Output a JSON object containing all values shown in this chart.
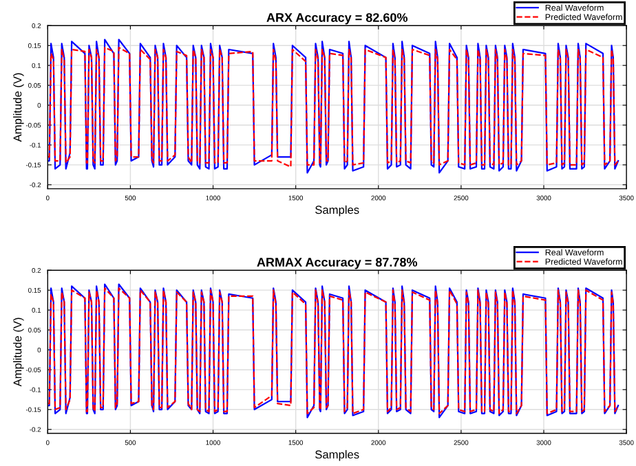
{
  "chart_data": [
    {
      "type": "line",
      "title": "ARX Accuracy = 82.60%",
      "xlabel": "Samples",
      "ylabel": "Amplitude (V)",
      "x": [
        0,
        10,
        20,
        35,
        45,
        75,
        85,
        100,
        110,
        135,
        145,
        225,
        235,
        240,
        250,
        265,
        275,
        285,
        295,
        310,
        320,
        335,
        345,
        400,
        410,
        420,
        430,
        495,
        505,
        550,
        560,
        620,
        630,
        640,
        650,
        665,
        675,
        690,
        700,
        715,
        725,
        770,
        780,
        840,
        850,
        870,
        880,
        895,
        905,
        920,
        930,
        945,
        955,
        975,
        985,
        1000,
        1010,
        1030,
        1040,
        1055,
        1065,
        1085,
        1095,
        1240,
        1250,
        1355,
        1365,
        1380,
        1390,
        1470,
        1480,
        1560,
        1570,
        1610,
        1620,
        1635,
        1645,
        1650,
        1660,
        1675,
        1685,
        1695,
        1705,
        1785,
        1795,
        1812,
        1822,
        1835,
        1845,
        1910,
        1920,
        2045,
        2055,
        2078,
        2088,
        2100,
        2110,
        2133,
        2143,
        2156,
        2166,
        2195,
        2205,
        2310,
        2320,
        2335,
        2345,
        2358,
        2368,
        2420,
        2430,
        2475,
        2485,
        2522,
        2532,
        2545,
        2555,
        2592,
        2602,
        2615,
        2625,
        2642,
        2652,
        2665,
        2675,
        2698,
        2708,
        2720,
        2730,
        2754,
        2764,
        2777,
        2787,
        2802,
        2812,
        2825,
        2835,
        2865,
        2875,
        3010,
        3020,
        3077,
        3087,
        3100,
        3110,
        3125,
        3135,
        3148,
        3158,
        3198,
        3208,
        3220,
        3230,
        3245,
        3255,
        3358,
        3368,
        3400,
        3410,
        3420,
        3430,
        3450
      ],
      "series": [
        {
          "name": "Real Waveform",
          "color": "#0000ff",
          "line_style": "solid",
          "values": [
            -0.14,
            -0.14,
            0.155,
            0.12,
            -0.16,
            -0.15,
            0.155,
            0.12,
            -0.16,
            -0.12,
            0.16,
            0.13,
            -0.16,
            -0.16,
            0.15,
            0.12,
            -0.15,
            -0.16,
            0.16,
            0.12,
            -0.15,
            -0.15,
            0.165,
            0.13,
            -0.15,
            -0.14,
            0.165,
            0.13,
            -0.14,
            -0.13,
            0.155,
            0.12,
            -0.14,
            -0.155,
            0.15,
            0.12,
            -0.15,
            -0.15,
            0.155,
            0.12,
            -0.15,
            -0.13,
            0.15,
            0.12,
            -0.14,
            -0.15,
            0.15,
            0.12,
            -0.15,
            -0.16,
            0.15,
            0.12,
            -0.155,
            -0.16,
            0.155,
            0.12,
            -0.16,
            -0.155,
            0.15,
            0.12,
            -0.16,
            -0.16,
            0.14,
            0.13,
            -0.15,
            -0.125,
            0.155,
            0.12,
            -0.13,
            -0.13,
            0.15,
            0.12,
            -0.17,
            -0.14,
            0.155,
            0.12,
            -0.15,
            -0.155,
            0.16,
            0.12,
            -0.15,
            -0.14,
            0.14,
            0.13,
            -0.16,
            -0.15,
            0.16,
            0.12,
            -0.165,
            -0.155,
            0.15,
            0.12,
            -0.16,
            -0.15,
            0.155,
            0.12,
            -0.155,
            -0.15,
            0.16,
            0.12,
            -0.15,
            -0.16,
            0.15,
            0.13,
            -0.15,
            -0.155,
            0.16,
            0.12,
            -0.17,
            -0.14,
            0.155,
            0.12,
            -0.155,
            -0.16,
            0.15,
            0.12,
            -0.16,
            -0.155,
            0.155,
            0.12,
            -0.16,
            -0.16,
            0.15,
            0.12,
            -0.155,
            -0.16,
            0.15,
            0.12,
            -0.165,
            -0.155,
            0.15,
            0.12,
            -0.16,
            -0.16,
            0.155,
            0.12,
            -0.165,
            -0.14,
            0.14,
            0.13,
            -0.165,
            -0.155,
            0.155,
            0.12,
            -0.16,
            -0.155,
            0.15,
            0.12,
            -0.16,
            -0.16,
            0.155,
            0.12,
            -0.16,
            -0.155,
            0.155,
            0.13,
            -0.16,
            -0.14,
            0.15,
            0.12,
            -0.16,
            -0.14
          ]
        },
        {
          "name": "Predicted Waveform",
          "color": "#ff0000",
          "line_style": "dashed",
          "values": [
            -0.13,
            -0.13,
            0.13,
            0.115,
            -0.14,
            -0.14,
            0.14,
            0.115,
            -0.145,
            -0.13,
            0.14,
            0.135,
            -0.145,
            -0.145,
            0.14,
            0.12,
            -0.14,
            -0.145,
            0.14,
            0.12,
            -0.14,
            -0.14,
            0.145,
            0.135,
            -0.14,
            -0.13,
            0.145,
            0.13,
            -0.13,
            -0.13,
            0.14,
            0.115,
            -0.135,
            -0.145,
            0.14,
            0.12,
            -0.14,
            -0.14,
            0.14,
            0.12,
            -0.14,
            -0.125,
            0.135,
            0.125,
            -0.13,
            -0.145,
            0.14,
            0.12,
            -0.14,
            -0.145,
            0.14,
            0.12,
            -0.145,
            -0.145,
            0.14,
            0.12,
            -0.145,
            -0.145,
            0.14,
            0.12,
            -0.145,
            -0.145,
            0.13,
            0.135,
            -0.14,
            -0.14,
            0.14,
            0.11,
            -0.14,
            -0.155,
            0.14,
            0.11,
            -0.15,
            -0.15,
            0.14,
            0.115,
            -0.145,
            -0.145,
            0.14,
            0.12,
            -0.14,
            -0.14,
            0.13,
            0.125,
            -0.145,
            -0.14,
            0.14,
            0.12,
            -0.15,
            -0.145,
            0.14,
            0.12,
            -0.145,
            -0.14,
            0.14,
            0.115,
            -0.145,
            -0.14,
            0.14,
            0.115,
            -0.14,
            -0.145,
            0.14,
            0.125,
            -0.14,
            -0.145,
            0.14,
            0.115,
            -0.15,
            -0.14,
            0.14,
            0.115,
            -0.145,
            -0.15,
            0.14,
            0.115,
            -0.15,
            -0.145,
            0.14,
            0.115,
            -0.15,
            -0.15,
            0.14,
            0.115,
            -0.145,
            -0.15,
            0.14,
            0.115,
            -0.15,
            -0.145,
            0.14,
            0.115,
            -0.15,
            -0.15,
            0.14,
            0.115,
            -0.15,
            -0.14,
            0.13,
            0.125,
            -0.15,
            -0.145,
            0.14,
            0.115,
            -0.15,
            -0.145,
            0.14,
            0.115,
            -0.15,
            -0.15,
            0.14,
            0.115,
            -0.15,
            -0.145,
            0.14,
            0.12,
            -0.15,
            -0.14,
            0.14,
            0.115,
            -0.15,
            -0.14
          ]
        }
      ],
      "xlim": [
        0,
        3500
      ],
      "xticks": [
        0,
        500,
        1000,
        1500,
        2000,
        2500,
        3000,
        3500
      ],
      "ylim": [
        -0.21,
        0.2
      ],
      "yticks": [
        -0.2,
        -0.15,
        -0.1,
        -0.05,
        0,
        0.05,
        0.1,
        0.15,
        0.2
      ],
      "grid": true,
      "legend": "top right"
    },
    {
      "type": "line",
      "title": "ARMAX Accuracy = 87.78%",
      "xlabel": "Samples",
      "ylabel": "Amplitude (V)",
      "x": [
        0,
        10,
        20,
        35,
        45,
        75,
        85,
        100,
        110,
        135,
        145,
        225,
        235,
        240,
        250,
        265,
        275,
        285,
        295,
        310,
        320,
        335,
        345,
        400,
        410,
        420,
        430,
        495,
        505,
        550,
        560,
        620,
        630,
        640,
        650,
        665,
        675,
        690,
        700,
        715,
        725,
        770,
        780,
        840,
        850,
        870,
        880,
        895,
        905,
        920,
        930,
        945,
        955,
        975,
        985,
        1000,
        1010,
        1030,
        1040,
        1055,
        1065,
        1085,
        1095,
        1240,
        1250,
        1355,
        1365,
        1380,
        1390,
        1470,
        1480,
        1560,
        1570,
        1610,
        1620,
        1635,
        1645,
        1650,
        1660,
        1675,
        1685,
        1695,
        1705,
        1785,
        1795,
        1812,
        1822,
        1835,
        1845,
        1910,
        1920,
        2045,
        2055,
        2078,
        2088,
        2100,
        2110,
        2133,
        2143,
        2156,
        2166,
        2195,
        2205,
        2310,
        2320,
        2335,
        2345,
        2358,
        2368,
        2420,
        2430,
        2475,
        2485,
        2522,
        2532,
        2545,
        2555,
        2592,
        2602,
        2615,
        2625,
        2642,
        2652,
        2665,
        2675,
        2698,
        2708,
        2720,
        2730,
        2754,
        2764,
        2777,
        2787,
        2802,
        2812,
        2825,
        2835,
        2865,
        2875,
        3010,
        3020,
        3077,
        3087,
        3100,
        3110,
        3125,
        3135,
        3148,
        3158,
        3198,
        3208,
        3220,
        3230,
        3245,
        3255,
        3358,
        3368,
        3400,
        3410,
        3420,
        3430,
        3450
      ],
      "series": [
        {
          "name": "Real Waveform",
          "color": "#0000ff",
          "line_style": "solid",
          "values": [
            -0.14,
            -0.14,
            0.155,
            0.12,
            -0.16,
            -0.15,
            0.155,
            0.12,
            -0.16,
            -0.12,
            0.16,
            0.13,
            -0.16,
            -0.16,
            0.15,
            0.12,
            -0.15,
            -0.16,
            0.16,
            0.12,
            -0.15,
            -0.15,
            0.165,
            0.13,
            -0.15,
            -0.14,
            0.165,
            0.13,
            -0.14,
            -0.13,
            0.155,
            0.12,
            -0.14,
            -0.155,
            0.15,
            0.12,
            -0.15,
            -0.15,
            0.155,
            0.12,
            -0.15,
            -0.13,
            0.15,
            0.12,
            -0.14,
            -0.15,
            0.15,
            0.12,
            -0.15,
            -0.16,
            0.15,
            0.12,
            -0.155,
            -0.16,
            0.155,
            0.12,
            -0.16,
            -0.155,
            0.15,
            0.12,
            -0.16,
            -0.16,
            0.14,
            0.13,
            -0.15,
            -0.125,
            0.155,
            0.12,
            -0.13,
            -0.13,
            0.15,
            0.12,
            -0.17,
            -0.14,
            0.155,
            0.12,
            -0.15,
            -0.155,
            0.16,
            0.12,
            -0.15,
            -0.14,
            0.14,
            0.13,
            -0.16,
            -0.15,
            0.16,
            0.12,
            -0.165,
            -0.155,
            0.15,
            0.12,
            -0.16,
            -0.15,
            0.155,
            0.12,
            -0.155,
            -0.15,
            0.16,
            0.12,
            -0.15,
            -0.16,
            0.15,
            0.13,
            -0.15,
            -0.155,
            0.16,
            0.12,
            -0.17,
            -0.14,
            0.155,
            0.12,
            -0.155,
            -0.16,
            0.15,
            0.12,
            -0.16,
            -0.155,
            0.155,
            0.12,
            -0.16,
            -0.16,
            0.15,
            0.12,
            -0.155,
            -0.16,
            0.15,
            0.12,
            -0.165,
            -0.155,
            0.15,
            0.12,
            -0.16,
            -0.16,
            0.155,
            0.12,
            -0.165,
            -0.14,
            0.14,
            0.13,
            -0.165,
            -0.155,
            0.155,
            0.12,
            -0.16,
            -0.155,
            0.15,
            0.12,
            -0.16,
            -0.16,
            0.155,
            0.12,
            -0.16,
            -0.155,
            0.155,
            0.13,
            -0.16,
            -0.14,
            0.15,
            0.12,
            -0.16,
            -0.14
          ]
        },
        {
          "name": "Predicted Waveform",
          "color": "#ff0000",
          "line_style": "dashed",
          "values": [
            -0.135,
            -0.135,
            0.14,
            0.12,
            -0.15,
            -0.145,
            0.145,
            0.12,
            -0.15,
            -0.125,
            0.15,
            0.13,
            -0.155,
            -0.155,
            0.145,
            0.12,
            -0.145,
            -0.155,
            0.15,
            0.12,
            -0.145,
            -0.145,
            0.155,
            0.13,
            -0.145,
            -0.135,
            0.155,
            0.13,
            -0.135,
            -0.13,
            0.15,
            0.12,
            -0.14,
            -0.15,
            0.145,
            0.12,
            -0.145,
            -0.145,
            0.15,
            0.12,
            -0.145,
            -0.13,
            0.145,
            0.12,
            -0.135,
            -0.15,
            0.145,
            0.12,
            -0.15,
            -0.155,
            0.145,
            0.12,
            -0.15,
            -0.155,
            0.15,
            0.12,
            -0.155,
            -0.15,
            0.145,
            0.12,
            -0.155,
            -0.155,
            0.135,
            0.135,
            -0.145,
            -0.115,
            0.15,
            0.115,
            -0.135,
            -0.14,
            0.145,
            0.115,
            -0.16,
            -0.145,
            0.15,
            0.115,
            -0.15,
            -0.15,
            0.15,
            0.12,
            -0.145,
            -0.14,
            0.135,
            0.125,
            -0.155,
            -0.145,
            0.15,
            0.12,
            -0.16,
            -0.15,
            0.145,
            0.12,
            -0.155,
            -0.145,
            0.15,
            0.115,
            -0.15,
            -0.145,
            0.15,
            0.115,
            -0.145,
            -0.155,
            0.145,
            0.125,
            -0.145,
            -0.15,
            0.15,
            0.115,
            -0.16,
            -0.14,
            0.15,
            0.115,
            -0.15,
            -0.155,
            0.145,
            0.115,
            -0.155,
            -0.15,
            0.15,
            0.115,
            -0.155,
            -0.155,
            0.145,
            0.115,
            -0.15,
            -0.155,
            0.145,
            0.115,
            -0.16,
            -0.15,
            0.145,
            0.115,
            -0.155,
            -0.155,
            0.15,
            0.115,
            -0.16,
            -0.14,
            0.135,
            0.125,
            -0.16,
            -0.15,
            0.15,
            0.115,
            -0.155,
            -0.15,
            0.145,
            0.115,
            -0.155,
            -0.155,
            0.15,
            0.115,
            -0.155,
            -0.15,
            0.15,
            0.125,
            -0.155,
            -0.14,
            0.145,
            0.115,
            -0.155,
            -0.14
          ]
        }
      ],
      "xlim": [
        0,
        3500
      ],
      "xticks": [
        0,
        500,
        1000,
        1500,
        2000,
        2500,
        3000,
        3500
      ],
      "ylim": [
        -0.21,
        0.2
      ],
      "yticks": [
        -0.2,
        -0.15,
        -0.1,
        -0.05,
        0,
        0.05,
        0.1,
        0.15,
        0.2
      ],
      "grid": true,
      "legend": "top right"
    }
  ]
}
